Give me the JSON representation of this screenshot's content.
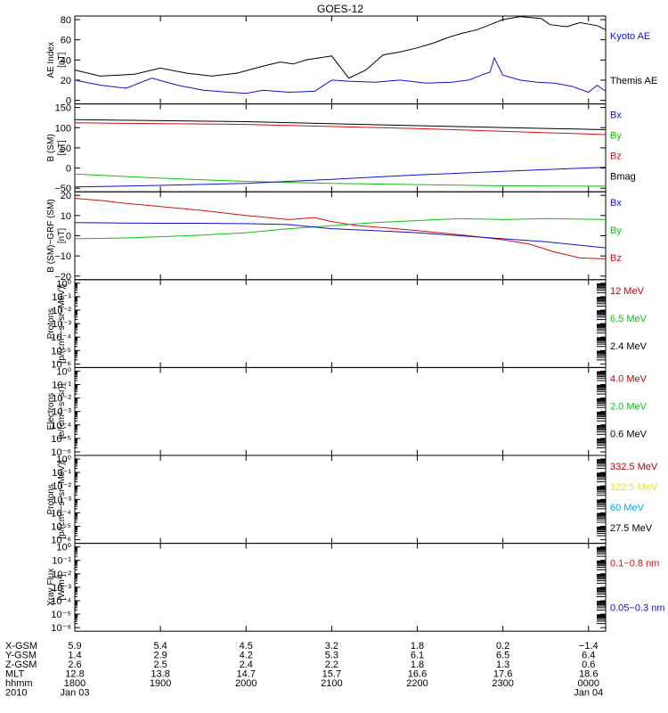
{
  "title": "GOES-12",
  "colors": {
    "black": "#000000",
    "blue": "#1010d0",
    "green": "#10c010",
    "red": "#d01010",
    "darkred": "#c00000",
    "yellow": "#e8e800",
    "cyan": "#00a8e0"
  },
  "chart_data": [
    {
      "type": "line",
      "ylabel": [
        "AE Index",
        "[nT]"
      ],
      "ylim": [
        0,
        80
      ],
      "yticks": [
        "80",
        "60",
        "40",
        "20",
        "0"
      ],
      "yticks_values": [
        80,
        60,
        40,
        20,
        0
      ],
      "legend": [
        {
          "name": "Kyoto AE",
          "color": "blue"
        },
        {
          "name": "Themis AE",
          "color": "black"
        }
      ],
      "series": [
        {
          "name": "Themis AE",
          "color": "black",
          "x": [
            0,
            0.3,
            0.7,
            1.0,
            1.3,
            1.6,
            1.9,
            2.2,
            2.4,
            2.55,
            2.7,
            2.85,
            3.0,
            3.2,
            3.4,
            3.6,
            3.8,
            4.0,
            4.2,
            4.35,
            4.5,
            4.7,
            4.85,
            5.0,
            5.2,
            5.45,
            5.55,
            5.75,
            5.9,
            6.1,
            6.2
          ],
          "y": [
            30,
            24,
            26,
            32,
            27,
            24,
            27,
            34,
            38,
            36,
            40,
            42,
            44,
            22,
            30,
            45,
            48,
            52,
            57,
            62,
            66,
            70,
            75,
            80,
            83,
            81,
            75,
            73,
            77,
            74,
            70
          ]
        },
        {
          "name": "Kyoto AE",
          "color": "blue",
          "x": [
            0,
            0.3,
            0.6,
            0.9,
            1.2,
            1.5,
            1.8,
            2.0,
            2.2,
            2.5,
            2.8,
            3.0,
            3.2,
            3.5,
            3.8,
            4.1,
            4.4,
            4.6,
            4.75,
            4.85,
            4.9,
            5.0,
            5.2,
            5.4,
            5.6,
            5.8,
            6.0,
            6.1,
            6.2
          ],
          "y": [
            20,
            15,
            12,
            22,
            15,
            10,
            8,
            7,
            10,
            8,
            9,
            20,
            19,
            18,
            20,
            17,
            18,
            20,
            25,
            28,
            42,
            25,
            20,
            18,
            17,
            14,
            8,
            15,
            9
          ]
        }
      ]
    },
    {
      "type": "line",
      "ylabel": [
        "B (SM)",
        "[nT]"
      ],
      "ylim": [
        -50,
        150
      ],
      "yticks": [
        "150",
        "100",
        "50",
        "0",
        "−50"
      ],
      "yticks_values": [
        150,
        100,
        50,
        0,
        -50
      ],
      "legend": [
        {
          "name": "Bx",
          "color": "blue"
        },
        {
          "name": "By",
          "color": "green"
        },
        {
          "name": "Bz",
          "color": "red"
        },
        {
          "name": "Bmag",
          "color": "black"
        }
      ],
      "series": [
        {
          "name": "Bmag",
          "color": "black",
          "x": [
            0,
            2,
            4,
            6.2
          ],
          "y": [
            120,
            115,
            105,
            95
          ]
        },
        {
          "name": "Bz",
          "color": "red",
          "x": [
            0,
            2,
            4,
            6.2
          ],
          "y": [
            112,
            108,
            98,
            83
          ]
        },
        {
          "name": "By",
          "color": "green",
          "x": [
            0,
            1,
            2,
            3,
            4,
            5,
            6.2
          ],
          "y": [
            -15,
            -25,
            -33,
            -38,
            -41,
            -44,
            -45
          ]
        },
        {
          "name": "Bx",
          "color": "blue",
          "x": [
            0,
            1,
            2,
            3,
            4,
            5,
            6.2
          ],
          "y": [
            -47,
            -43,
            -38,
            -28,
            -17,
            -8,
            2
          ]
        }
      ]
    },
    {
      "type": "line",
      "ylabel": [
        "B (SM)−GRF (SM)",
        "[nT]"
      ],
      "ylim": [
        -20,
        20
      ],
      "yticks": [
        "20",
        "10",
        "0",
        "−10",
        "−20"
      ],
      "yticks_values": [
        20,
        10,
        0,
        -10,
        -20
      ],
      "legend": [
        {
          "name": "Bx",
          "color": "blue"
        },
        {
          "name": "By",
          "color": "green"
        },
        {
          "name": "Bz",
          "color": "red"
        }
      ],
      "series": [
        {
          "name": "Bz",
          "color": "red",
          "x": [
            0,
            0.3,
            0.6,
            1.0,
            1.5,
            2.0,
            2.5,
            2.8,
            3.0,
            3.3,
            3.6,
            4.0,
            4.5,
            5.0,
            5.3,
            5.6,
            5.9,
            6.2
          ],
          "y": [
            18.5,
            17.5,
            16,
            14.5,
            12.5,
            10,
            8,
            9,
            7,
            5,
            4,
            2.5,
            0.5,
            -2,
            -4,
            -8,
            -11,
            -11.5
          ]
        },
        {
          "name": "By",
          "color": "green",
          "x": [
            0,
            0.5,
            1.0,
            1.5,
            2.0,
            2.5,
            3.0,
            3.5,
            4.0,
            4.5,
            5.0,
            5.5,
            6.2
          ],
          "y": [
            -1.5,
            -1.2,
            -0.5,
            0.3,
            1.5,
            3.5,
            5,
            6.5,
            7.5,
            8.5,
            8,
            8.5,
            8
          ]
        },
        {
          "name": "Bx",
          "color": "blue",
          "x": [
            0,
            0.5,
            1.0,
            1.5,
            2.0,
            2.5,
            3.0,
            3.5,
            4.0,
            4.5,
            5.0,
            5.5,
            6.2
          ],
          "y": [
            6.5,
            6.3,
            6.2,
            6.2,
            6,
            5.5,
            3.5,
            2.5,
            1.5,
            0,
            -1.5,
            -3,
            -6
          ]
        }
      ]
    },
    {
      "type": "line",
      "ylabel": [
        "Protons",
        "[p/(cm²−s−sr−MeV)]"
      ],
      "yscale": "log",
      "yticks": [
        "10⁰",
        "10⁻¹",
        "10⁻²",
        "10⁻³",
        "10⁻⁴",
        "10⁻⁵",
        "10⁻⁶"
      ],
      "yticks_values": [
        0,
        -1,
        -2,
        -3,
        -4,
        -5,
        -6
      ],
      "legend": [
        {
          "name": "12 MeV",
          "color": "darkred"
        },
        {
          "name": "6.5 MeV",
          "color": "green"
        },
        {
          "name": "2.4 MeV",
          "color": "black"
        }
      ],
      "series": []
    },
    {
      "type": "line",
      "ylabel": [
        "Electrons",
        "[e/(cm²−s−sr)]"
      ],
      "yscale": "log",
      "yticks": [
        "10⁰",
        "10⁻¹",
        "10⁻²",
        "10⁻³",
        "10⁻⁴",
        "10⁻⁵",
        "10⁻⁶"
      ],
      "yticks_values": [
        0,
        -1,
        -2,
        -3,
        -4,
        -5,
        -6
      ],
      "legend": [
        {
          "name": "4.0 MeV",
          "color": "darkred"
        },
        {
          "name": "2.0 MeV",
          "color": "green"
        },
        {
          "name": "0.6 MeV",
          "color": "black"
        }
      ],
      "series": []
    },
    {
      "type": "line",
      "ylabel": [
        "Protons",
        "[p/(cm²−s−sr−MeV)]"
      ],
      "yscale": "log",
      "yticks": [
        "10⁰",
        "10⁻¹",
        "10⁻²",
        "10⁻³",
        "10⁻⁴",
        "10⁻⁵",
        "10⁻⁶"
      ],
      "yticks_values": [
        0,
        -1,
        -2,
        -3,
        -4,
        -5,
        -6
      ],
      "legend": [
        {
          "name": "332.5 MeV",
          "color": "darkred"
        },
        {
          "name": "122.5 MeV",
          "color": "yellow"
        },
        {
          "name": "60 MeV",
          "color": "cyan"
        },
        {
          "name": "27.5 MeV",
          "color": "black"
        }
      ],
      "series": []
    },
    {
      "type": "line",
      "ylabel": [
        "Xray Flux",
        "[W/m²]"
      ],
      "yscale": "log",
      "yticks": [
        "10⁰",
        "10⁻¹",
        "10⁻²",
        "10⁻³",
        "10⁻⁴",
        "10⁻⁵",
        "10⁻⁶"
      ],
      "yticks_values": [
        0,
        -1,
        -2,
        -3,
        -4,
        -5,
        -6
      ],
      "legend": [
        {
          "name": "0.1−0.8 nm",
          "color": "red"
        },
        {
          "name": "0.05−0.3 nm",
          "color": "blue"
        }
      ],
      "series": []
    }
  ],
  "xaxis": {
    "range": [
      0,
      6.2
    ],
    "tick_positions": [
      0,
      1,
      2,
      3,
      4,
      5,
      6
    ],
    "rows": [
      {
        "label": "X-GSM",
        "values": [
          "5.9",
          "5.4",
          "4.5",
          "3.2",
          "1.8",
          "0.2",
          "−1.4"
        ]
      },
      {
        "label": "Y-GSM",
        "values": [
          "1.4",
          "2.9",
          "4.2",
          "5.3",
          "6.1",
          "6.5",
          "6.4"
        ]
      },
      {
        "label": "Z-GSM",
        "values": [
          "2.6",
          "2.5",
          "2.4",
          "2.2",
          "1.8",
          "1.3",
          "0.6"
        ]
      },
      {
        "label": "MLT",
        "values": [
          "12.8",
          "13.8",
          "14.7",
          "15.7",
          "16.6",
          "17.6",
          "18.6"
        ]
      },
      {
        "label": "hhmm",
        "values": [
          "1800",
          "1900",
          "2000",
          "2100",
          "2200",
          "2300",
          "0000"
        ]
      },
      {
        "label": "2010",
        "values": [
          "Jan 03",
          "",
          "",
          "",
          "",
          "",
          "Jan 04"
        ]
      }
    ]
  }
}
